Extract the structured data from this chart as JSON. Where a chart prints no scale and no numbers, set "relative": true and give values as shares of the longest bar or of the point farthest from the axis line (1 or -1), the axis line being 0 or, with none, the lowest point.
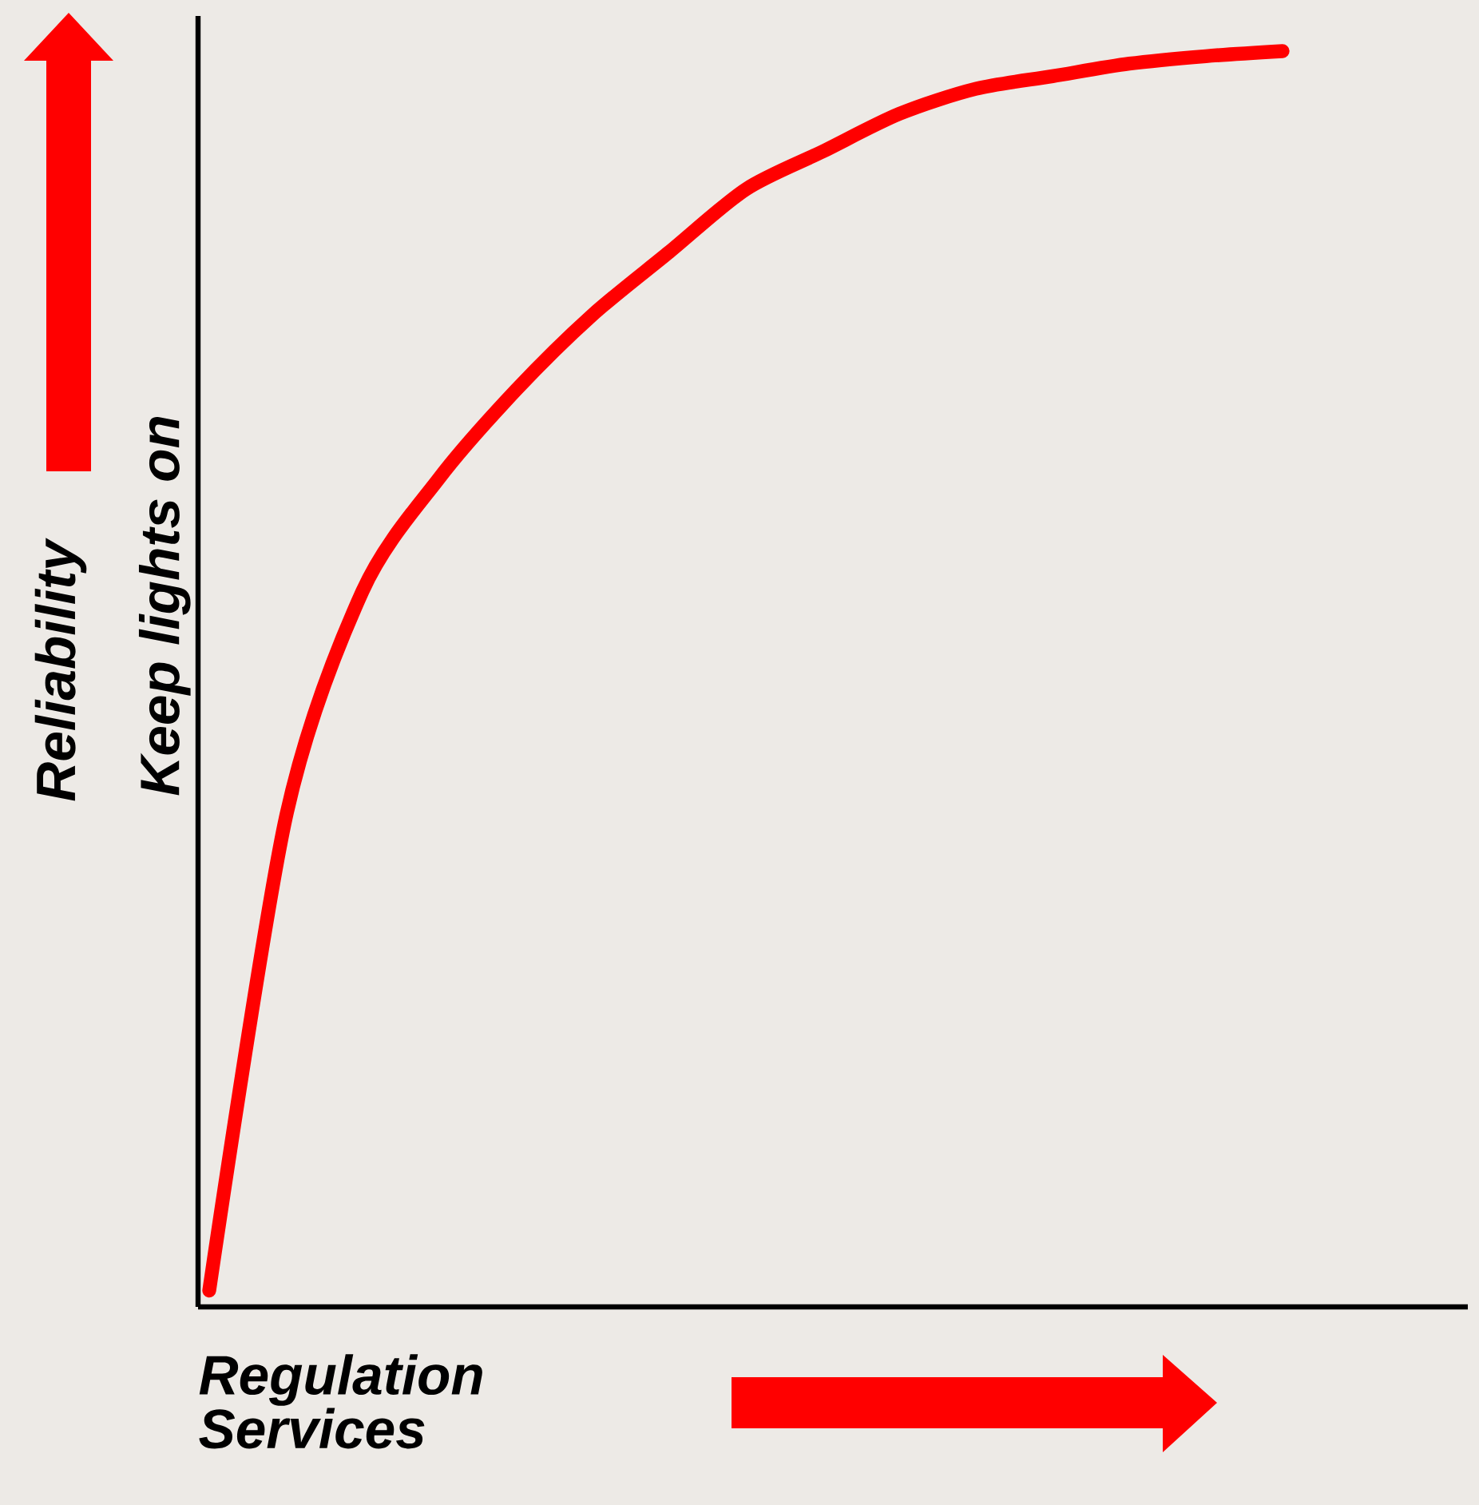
{
  "chart_data": {
    "type": "line",
    "relative": true,
    "xlabel": "Regulation Services",
    "ylabel": "Keep lights on",
    "annotations": [
      "Reliability"
    ],
    "categories": [
      null,
      null,
      null,
      null,
      null,
      null,
      null,
      null,
      null,
      null,
      null,
      null,
      null,
      null,
      null
    ],
    "series": [
      {
        "color": "#ff0000",
        "values": [
          0.013,
          0.39,
          0.57,
          0.66,
          0.73,
          0.79,
          0.84,
          0.89,
          0.92,
          0.95,
          0.97,
          0.98,
          0.99,
          0.996,
          1
        ]
      }
    ]
  }
}
